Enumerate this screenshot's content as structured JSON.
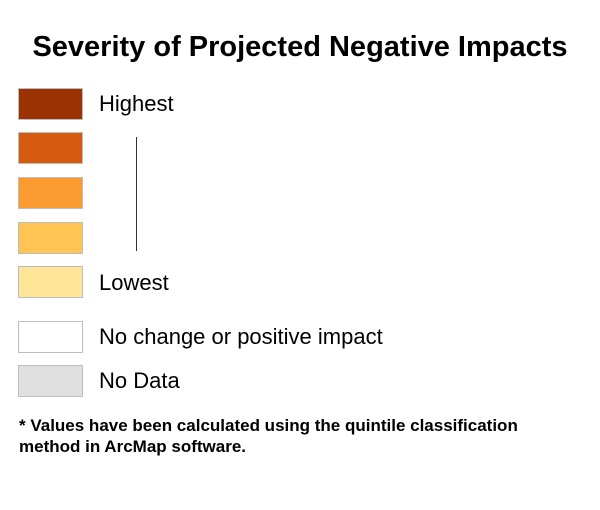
{
  "legend": {
    "title": "Severity of Projected Negative Impacts",
    "classes": [
      {
        "label": "Highest",
        "color": "#9b3203"
      },
      {
        "label": "",
        "color": "#d65b0f"
      },
      {
        "label": "",
        "color": "#fb9a2e"
      },
      {
        "label": "",
        "color": "#ffc454"
      },
      {
        "label": "Lowest",
        "color": "#fee598"
      },
      {
        "label": "No change or positive impact",
        "color": "#ffffff"
      },
      {
        "label": "No Data",
        "color": "#e0e0e0"
      }
    ],
    "footnote": "* Values have been calculated using the quintile classification method in ArcMap software."
  }
}
